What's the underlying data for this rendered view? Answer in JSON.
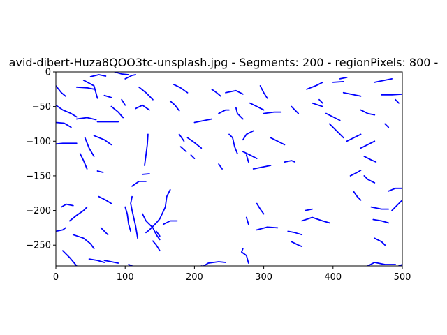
{
  "chart_data": {
    "type": "line",
    "title": "avid-dibert-Huza8QOO3tc-unsplash.jpg - Segments: 200 - regionPixels: 800 -",
    "xlabel": "",
    "ylabel": "",
    "xlim": [
      0,
      500
    ],
    "ylim": [
      -280,
      0
    ],
    "x_ticks": [
      0,
      100,
      200,
      300,
      400,
      500
    ],
    "y_ticks": [
      0,
      -50,
      -100,
      -150,
      -200,
      -250
    ],
    "grid": false,
    "legend": "none",
    "series_color": "#0000ff",
    "segments": [
      [
        [
          0,
          -20
        ],
        [
          8,
          -30
        ],
        [
          14,
          -35
        ]
      ],
      [
        [
          0,
          -48
        ],
        [
          10,
          -55
        ],
        [
          22,
          -60
        ],
        [
          30,
          -65
        ]
      ],
      [
        [
          0,
          -73
        ],
        [
          12,
          -74
        ],
        [
          22,
          -80
        ]
      ],
      [
        [
          0,
          -104
        ],
        [
          10,
          -103
        ],
        [
          30,
          -103
        ]
      ],
      [
        [
          0,
          -230
        ],
        [
          10,
          -228
        ],
        [
          14,
          -225
        ]
      ],
      [
        [
          10,
          -258
        ],
        [
          20,
          -268
        ],
        [
          30,
          -280
        ]
      ],
      [
        [
          8,
          -195
        ],
        [
          15,
          -191
        ],
        [
          25,
          -193
        ]
      ],
      [
        [
          20,
          -215
        ],
        [
          30,
          -207
        ],
        [
          40,
          -200
        ],
        [
          45,
          -195
        ]
      ],
      [
        [
          25,
          -235
        ],
        [
          40,
          -240
        ],
        [
          50,
          -248
        ],
        [
          55,
          -255
        ]
      ],
      [
        [
          30,
          -22
        ],
        [
          45,
          -23
        ],
        [
          55,
          -25
        ]
      ],
      [
        [
          30,
          -68
        ],
        [
          45,
          -66
        ],
        [
          58,
          -69
        ]
      ],
      [
        [
          35,
          -118
        ],
        [
          40,
          -128
        ],
        [
          45,
          -140
        ]
      ],
      [
        [
          40,
          -12
        ],
        [
          55,
          -20
        ],
        [
          60,
          -38
        ]
      ],
      [
        [
          42,
          -95
        ],
        [
          48,
          -110
        ],
        [
          55,
          -122
        ]
      ],
      [
        [
          48,
          -270
        ],
        [
          60,
          -272
        ],
        [
          70,
          -275
        ]
      ],
      [
        [
          50,
          -7
        ],
        [
          62,
          -4
        ],
        [
          72,
          -6
        ]
      ],
      [
        [
          55,
          -92
        ],
        [
          70,
          -98
        ],
        [
          80,
          -105
        ]
      ],
      [
        [
          62,
          -180
        ],
        [
          72,
          -185
        ],
        [
          80,
          -190
        ]
      ],
      [
        [
          65,
          -225
        ],
        [
          75,
          -235
        ]
      ],
      [
        [
          70,
          -34
        ],
        [
          80,
          -37
        ]
      ],
      [
        [
          60,
          -143
        ],
        [
          68,
          -145
        ]
      ],
      [
        [
          60,
          -72
        ],
        [
          75,
          -72
        ],
        [
          90,
          -72
        ]
      ],
      [
        [
          70,
          -272
        ],
        [
          80,
          -274
        ],
        [
          90,
          -276
        ]
      ],
      [
        [
          80,
          -50
        ],
        [
          90,
          -58
        ],
        [
          97,
          -66
        ]
      ],
      [
        [
          85,
          0
        ],
        [
          95,
          -3
        ],
        [
          105,
          -4
        ]
      ],
      [
        [
          100,
          -10
        ],
        [
          110,
          -5
        ],
        [
          115,
          -4
        ]
      ],
      [
        [
          100,
          -195
        ],
        [
          103,
          -205
        ],
        [
          105,
          -220
        ],
        [
          108,
          -230
        ]
      ],
      [
        [
          95,
          -40
        ],
        [
          100,
          -48
        ]
      ],
      [
        [
          110,
          -180
        ],
        [
          108,
          -190
        ],
        [
          110,
          -200
        ],
        [
          115,
          -222
        ],
        [
          118,
          -240
        ]
      ],
      [
        [
          105,
          -278
        ],
        [
          110,
          -280
        ]
      ],
      [
        [
          120,
          -22
        ],
        [
          130,
          -30
        ],
        [
          140,
          -40
        ]
      ],
      [
        [
          115,
          -53
        ],
        [
          125,
          -48
        ],
        [
          135,
          -55
        ]
      ],
      [
        [
          125,
          -148
        ],
        [
          135,
          -147
        ]
      ],
      [
        [
          128,
          -135
        ],
        [
          130,
          -120
        ],
        [
          132,
          -105
        ],
        [
          133,
          -90
        ]
      ],
      [
        [
          110,
          -165
        ],
        [
          120,
          -158
        ],
        [
          130,
          -158
        ]
      ],
      [
        [
          125,
          -205
        ],
        [
          130,
          -215
        ],
        [
          140,
          -225
        ],
        [
          145,
          -235
        ],
        [
          150,
          -242
        ]
      ],
      [
        [
          130,
          -232
        ],
        [
          135,
          -228
        ],
        [
          145,
          -218
        ],
        [
          150,
          -212
        ],
        [
          158,
          -195
        ],
        [
          160,
          -180
        ],
        [
          165,
          -170
        ]
      ],
      [
        [
          140,
          -244
        ],
        [
          145,
          -250
        ],
        [
          150,
          -258
        ]
      ],
      [
        [
          145,
          -230
        ],
        [
          150,
          -237
        ]
      ],
      [
        [
          155,
          -220
        ],
        [
          165,
          -215
        ],
        [
          175,
          -215
        ]
      ],
      [
        [
          165,
          -42
        ],
        [
          172,
          -48
        ],
        [
          178,
          -56
        ]
      ],
      [
        [
          170,
          -18
        ],
        [
          180,
          -23
        ],
        [
          190,
          -30
        ]
      ],
      [
        [
          178,
          -90
        ],
        [
          185,
          -100
        ]
      ],
      [
        [
          180,
          -108
        ],
        [
          188,
          -115
        ]
      ],
      [
        [
          190,
          -95
        ],
        [
          200,
          -102
        ],
        [
          210,
          -110
        ]
      ],
      [
        [
          195,
          -120
        ],
        [
          200,
          -125
        ]
      ],
      [
        [
          200,
          -73
        ],
        [
          215,
          -70
        ],
        [
          225,
          -68
        ]
      ],
      [
        [
          205,
          -285
        ],
        [
          220,
          -276
        ],
        [
          235,
          -274
        ],
        [
          245,
          -275
        ]
      ],
      [
        [
          210,
          -280
        ],
        [
          225,
          -283
        ]
      ],
      [
        [
          225,
          -25
        ],
        [
          232,
          -30
        ],
        [
          238,
          -35
        ]
      ],
      [
        [
          235,
          -60
        ],
        [
          245,
          -55
        ],
        [
          250,
          -55
        ]
      ],
      [
        [
          235,
          -133
        ],
        [
          240,
          -140
        ]
      ],
      [
        [
          245,
          -30
        ],
        [
          260,
          -27
        ],
        [
          270,
          -32
        ]
      ],
      [
        [
          260,
          -52
        ],
        [
          262,
          -60
        ],
        [
          270,
          -68
        ]
      ],
      [
        [
          250,
          -90
        ],
        [
          255,
          -95
        ],
        [
          258,
          -108
        ],
        [
          262,
          -118
        ]
      ],
      [
        [
          270,
          -98
        ],
        [
          275,
          -90
        ],
        [
          285,
          -85
        ]
      ],
      [
        [
          270,
          -115
        ],
        [
          280,
          -120
        ],
        [
          290,
          -125
        ]
      ],
      [
        [
          275,
          -120
        ],
        [
          278,
          -130
        ]
      ],
      [
        [
          270,
          -255
        ],
        [
          268,
          -260
        ],
        [
          275,
          -265
        ],
        [
          278,
          -276
        ]
      ],
      [
        [
          275,
          -210
        ],
        [
          278,
          -220
        ]
      ],
      [
        [
          280,
          -45
        ],
        [
          290,
          -50
        ],
        [
          300,
          -55
        ]
      ],
      [
        [
          285,
          -140
        ],
        [
          295,
          -138
        ],
        [
          310,
          -135
        ]
      ],
      [
        [
          290,
          -190
        ],
        [
          295,
          -198
        ],
        [
          300,
          -205
        ]
      ],
      [
        [
          290,
          -228
        ],
        [
          305,
          -224
        ],
        [
          320,
          -225
        ]
      ],
      [
        [
          295,
          -20
        ],
        [
          300,
          -30
        ],
        [
          305,
          -38
        ]
      ],
      [
        [
          300,
          -60
        ],
        [
          315,
          -58
        ],
        [
          325,
          -58
        ]
      ],
      [
        [
          310,
          -95
        ],
        [
          320,
          -100
        ],
        [
          330,
          -105
        ]
      ],
      [
        [
          330,
          -130
        ],
        [
          340,
          -128
        ],
        [
          345,
          -130
        ]
      ],
      [
        [
          335,
          -230
        ],
        [
          345,
          -232
        ],
        [
          355,
          -235
        ]
      ],
      [
        [
          340,
          -50
        ],
        [
          345,
          -55
        ],
        [
          350,
          -60
        ]
      ],
      [
        [
          340,
          -245
        ],
        [
          350,
          -250
        ],
        [
          355,
          -252
        ]
      ],
      [
        [
          355,
          -215
        ],
        [
          370,
          -210
        ],
        [
          385,
          -215
        ],
        [
          395,
          -218
        ]
      ],
      [
        [
          360,
          -200
        ],
        [
          370,
          -198
        ]
      ],
      [
        [
          362,
          -25
        ],
        [
          375,
          -20
        ],
        [
          385,
          -15
        ]
      ],
      [
        [
          370,
          -45
        ],
        [
          385,
          -50
        ]
      ],
      [
        [
          380,
          -40
        ],
        [
          385,
          -45
        ]
      ],
      [
        [
          390,
          -60
        ],
        [
          400,
          -65
        ],
        [
          410,
          -70
        ]
      ],
      [
        [
          395,
          -75
        ],
        [
          405,
          -85
        ],
        [
          415,
          -95
        ]
      ],
      [
        [
          400,
          -15
        ],
        [
          415,
          -14
        ]
      ],
      [
        [
          410,
          -10
        ],
        [
          420,
          -8
        ]
      ],
      [
        [
          415,
          -30
        ],
        [
          430,
          -33
        ],
        [
          440,
          -35
        ]
      ],
      [
        [
          420,
          -100
        ],
        [
          430,
          -95
        ],
        [
          440,
          -90
        ]
      ],
      [
        [
          425,
          -150
        ],
        [
          435,
          -145
        ],
        [
          440,
          -142
        ]
      ],
      [
        [
          430,
          -173
        ],
        [
          435,
          -180
        ],
        [
          440,
          -185
        ]
      ],
      [
        [
          440,
          -55
        ],
        [
          450,
          -60
        ],
        [
          460,
          -62
        ]
      ],
      [
        [
          440,
          -110
        ],
        [
          450,
          -105
        ],
        [
          460,
          -100
        ]
      ],
      [
        [
          445,
          -122
        ],
        [
          455,
          -127
        ],
        [
          462,
          -130
        ]
      ],
      [
        [
          445,
          -150
        ],
        [
          450,
          -155
        ],
        [
          460,
          -160
        ]
      ],
      [
        [
          450,
          -280
        ],
        [
          460,
          -275
        ],
        [
          475,
          -278
        ],
        [
          490,
          -278
        ]
      ],
      [
        [
          455,
          -195
        ],
        [
          470,
          -198
        ],
        [
          480,
          -198
        ]
      ],
      [
        [
          458,
          -213
        ],
        [
          470,
          -215
        ],
        [
          480,
          -218
        ]
      ],
      [
        [
          460,
          -240
        ],
        [
          470,
          -245
        ],
        [
          475,
          -250
        ]
      ],
      [
        [
          460,
          -15
        ],
        [
          475,
          -12
        ],
        [
          485,
          -10
        ]
      ],
      [
        [
          470,
          -33
        ],
        [
          485,
          -33
        ],
        [
          500,
          -32
        ]
      ],
      [
        [
          475,
          -75
        ],
        [
          480,
          -80
        ]
      ],
      [
        [
          480,
          -172
        ],
        [
          490,
          -168
        ],
        [
          500,
          -168
        ]
      ],
      [
        [
          485,
          -200
        ],
        [
          495,
          -190
        ],
        [
          500,
          -185
        ]
      ],
      [
        [
          490,
          -40
        ],
        [
          495,
          -45
        ]
      ],
      [
        [
          495,
          -280
        ],
        [
          500,
          -278
        ]
      ]
    ]
  }
}
